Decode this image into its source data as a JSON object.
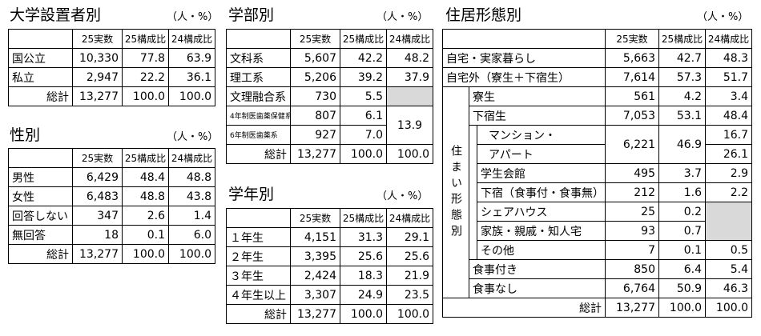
{
  "university": {
    "title": "大学設置者別",
    "unit": "（人・%）",
    "headers": [
      "25実数",
      "25構成比",
      "24構成比"
    ],
    "rows": [
      {
        "label": "国公立",
        "v25": "10,330",
        "r25": "77.8",
        "r24": "63.9"
      },
      {
        "label": "私立",
        "v25": "2,947",
        "r25": "22.2",
        "r24": "36.1"
      }
    ],
    "total": {
      "label": "総計",
      "v25": "13,277",
      "r25": "100.0",
      "r24": "100.0"
    }
  },
  "gender": {
    "title": "性別",
    "unit": "（人・%）",
    "headers": [
      "25実数",
      "25構成比",
      "24構成比"
    ],
    "rows": [
      {
        "label": "男性",
        "v25": "6,429",
        "r25": "48.4",
        "r24": "48.8"
      },
      {
        "label": "女性",
        "v25": "6,483",
        "r25": "48.8",
        "r24": "43.8"
      },
      {
        "label": "回答しない",
        "v25": "347",
        "r25": "2.6",
        "r24": "1.4"
      },
      {
        "label": "無回答",
        "v25": "18",
        "r25": "0.1",
        "r24": "6.0"
      }
    ],
    "total": {
      "label": "総計",
      "v25": "13,277",
      "r25": "100.0",
      "r24": "100.0"
    }
  },
  "faculty": {
    "title": "学部別",
    "unit": "（人・%）",
    "headers": [
      "25実数",
      "25構成比",
      "24構成比"
    ],
    "rows": [
      {
        "label": "文科系",
        "v25": "5,607",
        "r25": "42.2",
        "r24": "48.2"
      },
      {
        "label": "理工系",
        "v25": "5,206",
        "r25": "39.2",
        "r24": "37.9"
      },
      {
        "label": "文理融合系",
        "v25": "730",
        "r25": "5.5",
        "r24": ""
      },
      {
        "label": "4年制医歯薬保健系",
        "v25": "807",
        "r25": "6.1",
        "r24": "13.9"
      },
      {
        "label": "6年制医歯薬系",
        "v25": "927",
        "r25": "7.0",
        "r24": ""
      }
    ],
    "total": {
      "label": "総計",
      "v25": "13,277",
      "r25": "100.0",
      "r24": "100.0"
    }
  },
  "grade": {
    "title": "学年別",
    "unit": "（人・%）",
    "headers": [
      "25実数",
      "25構成比",
      "24構成比"
    ],
    "rows": [
      {
        "label": "１年生",
        "v25": "4,151",
        "r25": "31.3",
        "r24": "29.1"
      },
      {
        "label": "２年生",
        "v25": "3,395",
        "r25": "25.6",
        "r24": "25.6"
      },
      {
        "label": "３年生",
        "v25": "2,424",
        "r25": "18.3",
        "r24": "21.9"
      },
      {
        "label": "４年生以上",
        "v25": "3,307",
        "r25": "24.9",
        "r24": "23.5"
      }
    ],
    "total": {
      "label": "総計",
      "v25": "13,277",
      "r25": "100.0",
      "r24": "100.0"
    }
  },
  "residence": {
    "title": "住居形態別",
    "unit": "（人・%）",
    "headers": [
      "25実数",
      "25構成比",
      "24構成比"
    ],
    "side_label": "住まい形態別",
    "home": {
      "label": "自宅・実家暮らし",
      "v25": "5,663",
      "r25": "42.7",
      "r24": "48.3"
    },
    "away": {
      "label": "自宅外（寮生＋下宿生）",
      "v25": "7,614",
      "r25": "57.3",
      "r24": "51.7"
    },
    "dorm": {
      "label": "寮生",
      "v25": "561",
      "r25": "4.2",
      "r24": "3.4"
    },
    "lodging": {
      "label": "下宿生",
      "v25": "7,053",
      "r25": "53.1",
      "r24": "48.4"
    },
    "sub": {
      "mansion_1": "マンション・",
      "mansion_2": "アパート",
      "mansion_v25": "6,221",
      "mansion_r25": "46.9",
      "mansion_r24a": "16.7",
      "mansion_r24b": "26.1",
      "hall": {
        "label": "学生会館",
        "v25": "495",
        "r25": "3.7",
        "r24": "2.9"
      },
      "board": {
        "label": "下宿（食事付・食事無）",
        "v25": "212",
        "r25": "1.6",
        "r24": "2.2"
      },
      "share": {
        "label": "シェアハウス",
        "v25": "25",
        "r25": "0.2",
        "r24": ""
      },
      "family": {
        "label": "家族・親戚・知人宅",
        "v25": "93",
        "r25": "0.7",
        "r24": ""
      },
      "other": {
        "label": "その他",
        "v25": "7",
        "r25": "0.1",
        "r24": "0.5"
      }
    },
    "meal_on": {
      "label": "食事付き",
      "v25": "850",
      "r25": "6.4",
      "r24": "5.4"
    },
    "meal_off": {
      "label": "食事なし",
      "v25": "6,764",
      "r25": "50.9",
      "r24": "46.3"
    },
    "total": {
      "label": "総計",
      "v25": "13,277",
      "r25": "100.0",
      "r24": "100.0"
    }
  }
}
